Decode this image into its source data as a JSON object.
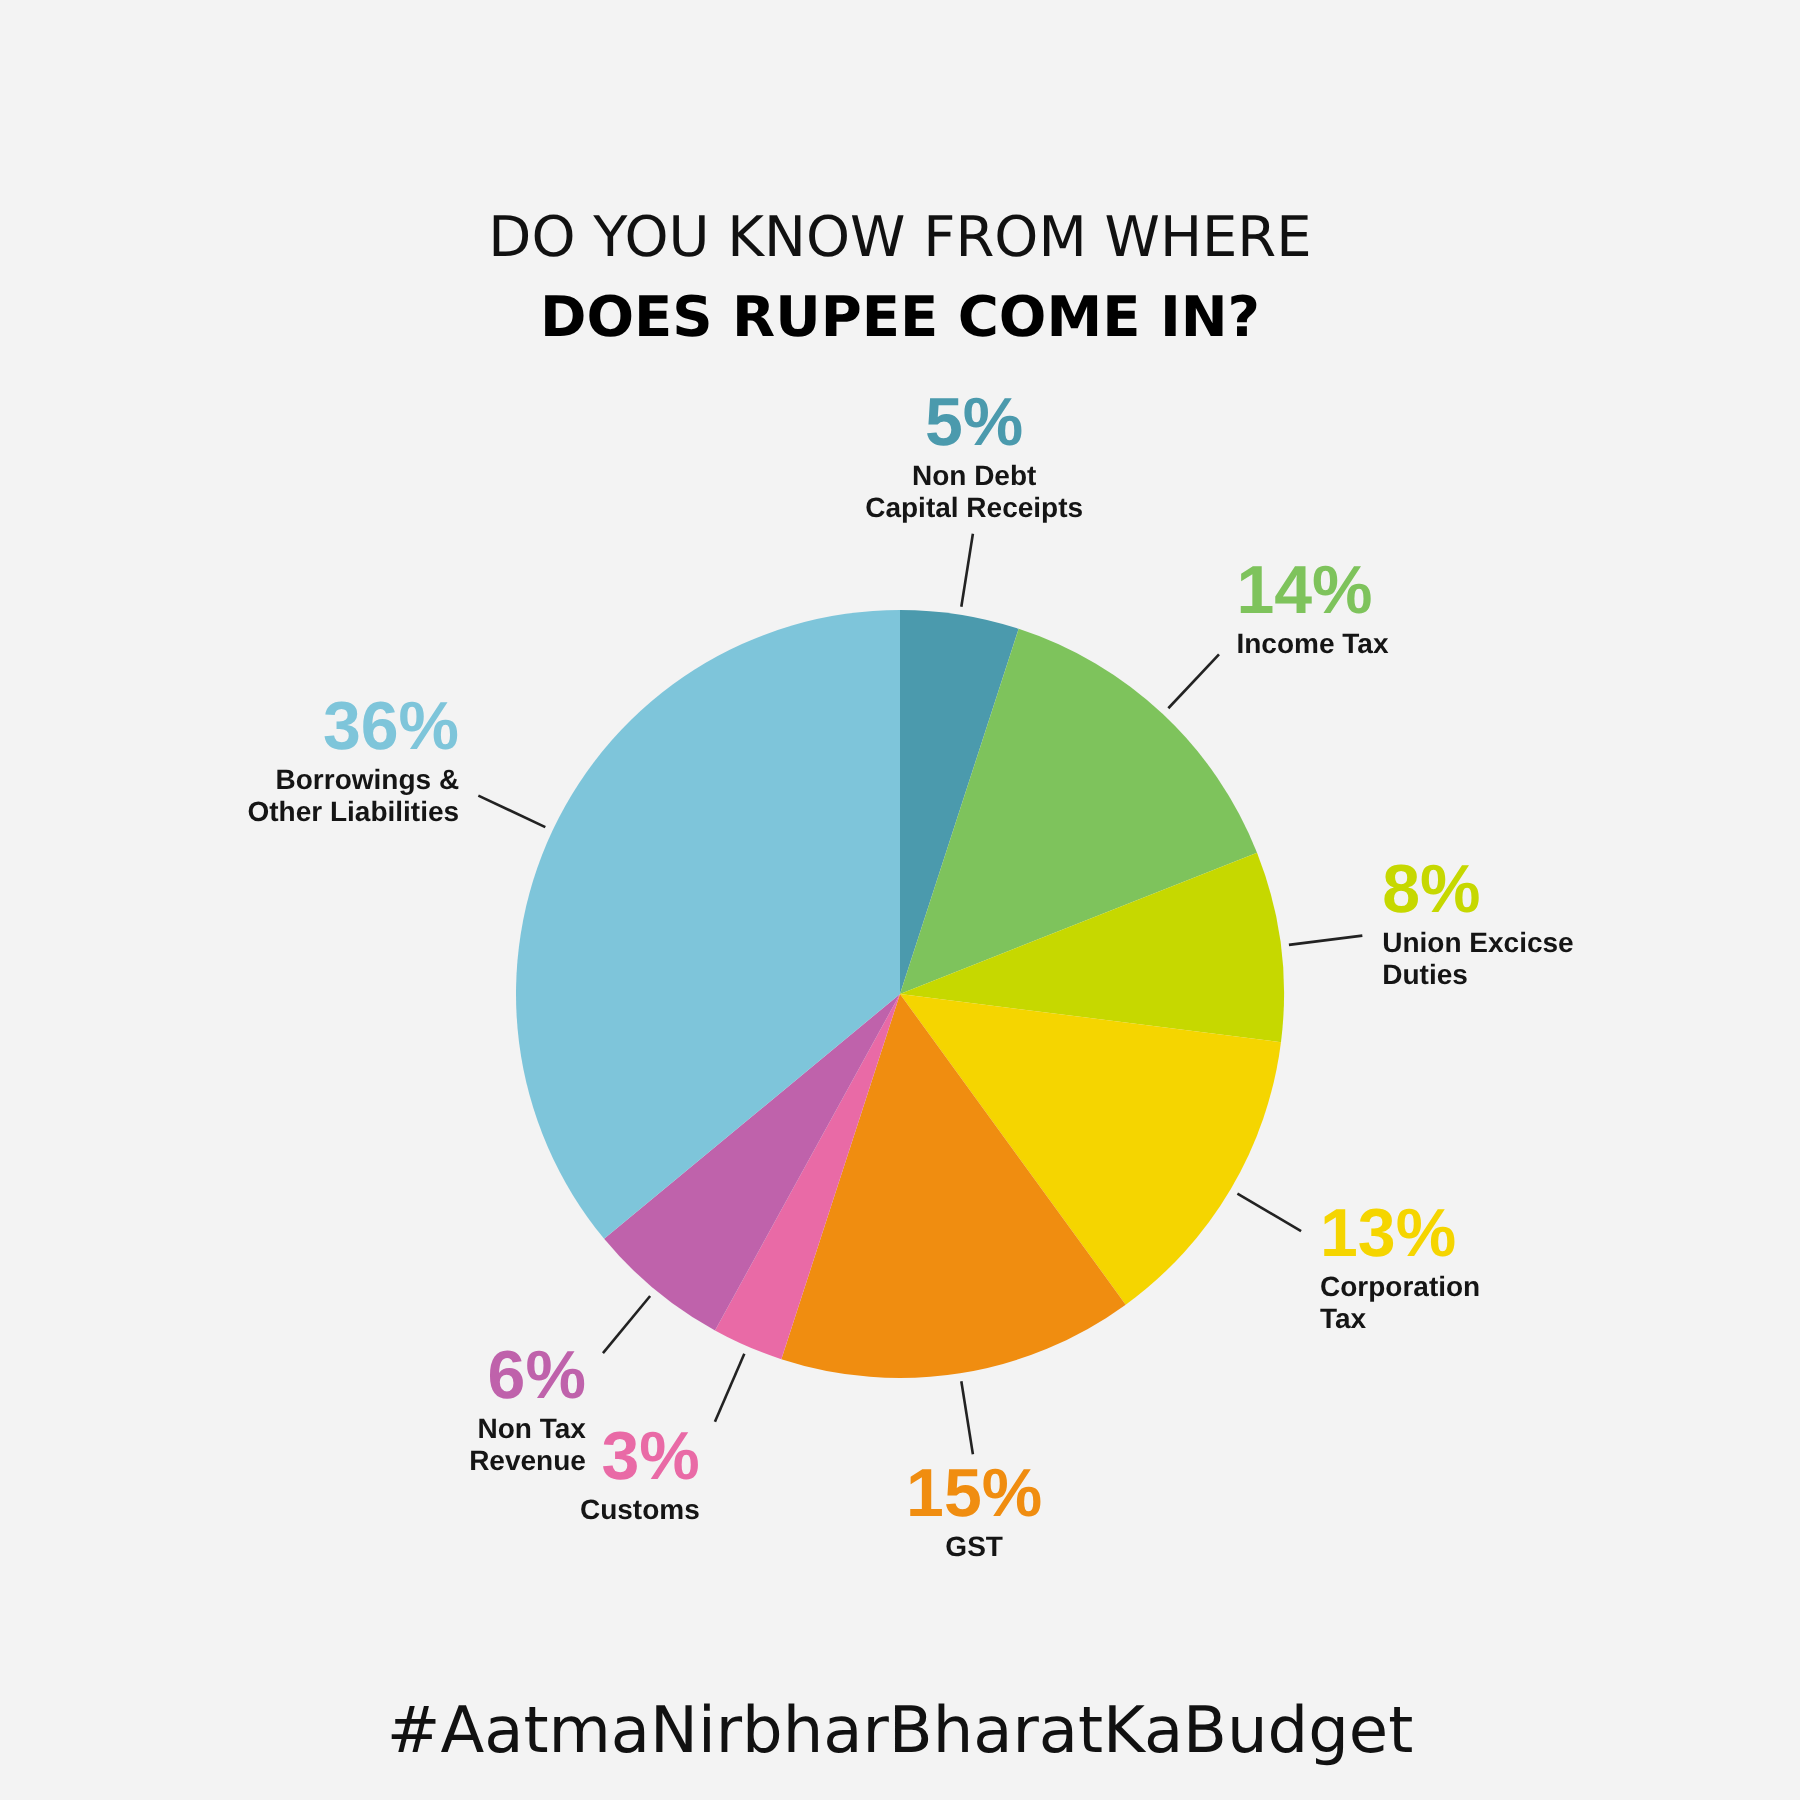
{
  "chart_data": {
    "type": "pie",
    "title": "DO YOU KNOW FROM WHERE",
    "subtitle": "DOES RUPEE COME IN?",
    "categories": [
      "Non Debt Capital Receipts",
      "Income Tax",
      "Union Excicse Duties",
      "Corporation Tax",
      "GST",
      "Customs",
      "Non Tax Revenue",
      "Borrowings & Other Liabilities"
    ],
    "values": [
      5,
      14,
      8,
      13,
      15,
      3,
      6,
      36
    ],
    "colors": [
      "#4b9aad",
      "#7ec35c",
      "#c6d800",
      "#f5d500",
      "#f08d10",
      "#e96aa6",
      "#bf62ab",
      "#7ec5da"
    ],
    "value_labels": [
      "5%",
      "14%",
      "8%",
      "13%",
      "15%",
      "3%",
      "6%",
      "36%"
    ],
    "annotations": [
      "#AatmaNirbharBharatKaBudget"
    ]
  }
}
